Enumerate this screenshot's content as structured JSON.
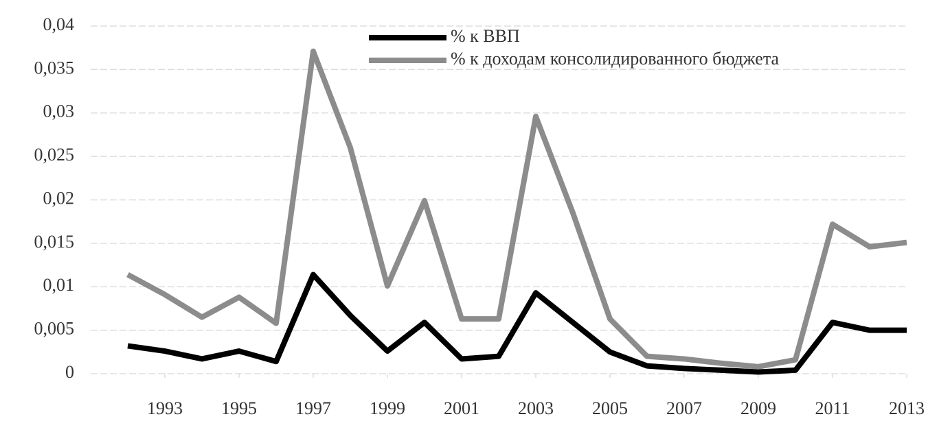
{
  "chart_data": {
    "type": "line",
    "x": [
      1992,
      1993,
      1994,
      1995,
      1996,
      1997,
      1998,
      1999,
      2000,
      2001,
      2002,
      2003,
      2004,
      2005,
      2006,
      2007,
      2008,
      2009,
      2010,
      2011,
      2012,
      2013
    ],
    "series": [
      {
        "name": "% к ВВП",
        "color": "#000000",
        "values": [
          0.0032,
          0.0026,
          0.0017,
          0.0026,
          0.0014,
          0.0114,
          0.0067,
          0.0026,
          0.0059,
          0.0017,
          0.002,
          0.0093,
          0.0059,
          0.0025,
          0.0009,
          0.0006,
          0.0004,
          0.0002,
          0.0004,
          0.0059,
          0.005,
          0.005
        ]
      },
      {
        "name": "% к доходам консолидированного бюджета",
        "color": "#8c8c8c",
        "values": [
          0.0114,
          0.0091,
          0.0065,
          0.0088,
          0.0058,
          0.0371,
          0.026,
          0.0101,
          0.0199,
          0.0063,
          0.0063,
          0.0296,
          0.0185,
          0.0063,
          0.002,
          0.0017,
          0.0012,
          0.0008,
          0.0016,
          0.0172,
          0.0146,
          0.0151
        ]
      }
    ],
    "xlim": [
      1991,
      2013
    ],
    "xticks": [
      1993,
      1995,
      1997,
      1999,
      2001,
      2003,
      2005,
      2007,
      2009,
      2011,
      2013
    ],
    "ylim": [
      0,
      0.04
    ],
    "yticks": [
      0,
      {
        "value": 0.005,
        "label": "0,005"
      },
      {
        "value": 0.01,
        "label": "0,01"
      },
      {
        "value": 0.015,
        "label": "0,015"
      },
      {
        "value": 0.02,
        "label": "0,02"
      },
      {
        "value": 0.025,
        "label": "0,025"
      },
      {
        "value": 0.03,
        "label": "0,03"
      },
      {
        "value": 0.035,
        "label": "0,035"
      },
      {
        "value": 0.04,
        "label": "0,04"
      }
    ],
    "grid": true,
    "legend": "top-right"
  }
}
